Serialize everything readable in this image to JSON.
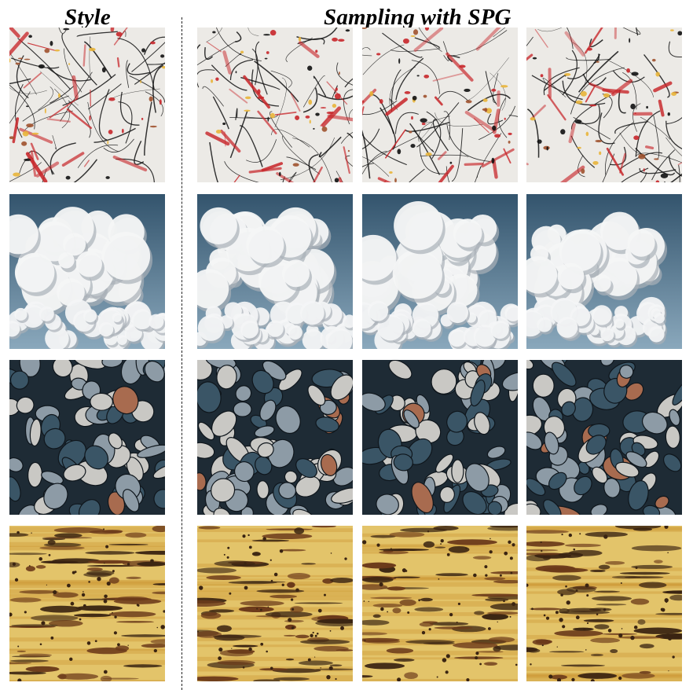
{
  "headers": {
    "style": "Style",
    "sampling": "Sampling with SPG"
  },
  "rows": [
    {
      "name": "paint-splatter",
      "palette": {
        "bg": "#eceae6",
        "c1": "#c8262a",
        "c2": "#111111",
        "c3": "#e9b53a",
        "c4": "#a0522d"
      }
    },
    {
      "name": "clouds",
      "palette": {
        "sky_top": "#33546d",
        "sky_bottom": "#8aa8bc",
        "cloud": "#f4f5f6",
        "shade": "#a9b0b8"
      }
    },
    {
      "name": "pebbles",
      "palette": {
        "bg": "#1e2b35",
        "c1": "#3a5566",
        "c2": "#c9c8c4",
        "c3": "#8d9ba6",
        "c4": "#a86b4f"
      }
    },
    {
      "name": "rust",
      "palette": {
        "bg": "#e3c46a",
        "c1": "#6b3a1a",
        "c2": "#3a2412",
        "c3": "#c9922f"
      }
    }
  ]
}
